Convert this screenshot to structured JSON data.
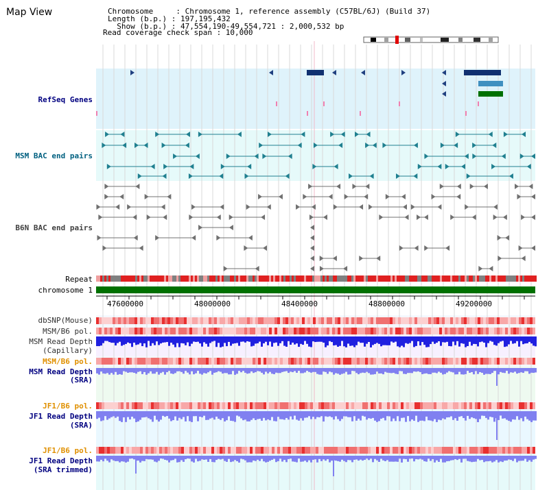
{
  "title": "Map View",
  "header": {
    "line1": "Chromosome     : Chromosome 1, reference assembly (C57BL/6J) (Build 37)",
    "line2": "Length (b.p.) : 197,195,432",
    "line3": "  Show (b.p.) : 47,554,190-49,554,721 : 2,000,532 bp",
    "line4": "Read coverage check span : 10,000"
  },
  "track_labels": {
    "refseq": "RefSeq Genes",
    "msm_bac": "MSM BAC end pairs",
    "b6n_bac": "B6N BAC end pairs",
    "repeat": "Repeat",
    "chromosome": "chromosome 1",
    "dbsnp": "dbSNP(Mouse)",
    "msm_b6_pol_1": "MSM/B6 pol.",
    "msm_read_depth_cap_1": "MSM Read Depth",
    "msm_read_depth_cap_2": "(Capillary)",
    "msm_b6_pol_2": "MSM/B6 pol.",
    "msm_read_depth_sra_1": "MSM Read Depth",
    "msm_read_depth_sra_2": "(SRA)",
    "jf1_b6_pol_1": "JF1/B6 pol.",
    "jf1_read_depth_sra_1": "JF1 Read Depth",
    "jf1_read_depth_sra_2": "(SRA)",
    "jf1_b6_pol_2": "JF1/B6 pol.",
    "jf1_read_depth_trim_1": "JF1 Read Depth",
    "jf1_read_depth_trim_2": "(SRA trimmed)"
  },
  "axis_ticks": [
    "47600000",
    "48000000",
    "48400000",
    "48800000",
    "49200000"
  ],
  "colors": {
    "refseq_bg": "#dff3fb",
    "bac_bg": "#e6fafa",
    "depth_bg": "#eefaf0",
    "chromosome": "#007000",
    "repeat_red": "#e02020",
    "repeat_gray": "#808080",
    "depth_blue": "#2020e0",
    "depth_light": "#8080f0"
  }
}
